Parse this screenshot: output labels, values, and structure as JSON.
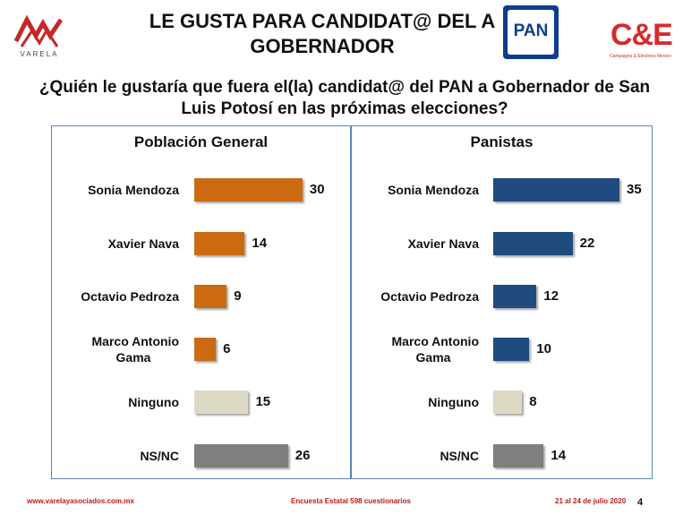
{
  "header": {
    "logo_left_text": "VARELA",
    "title": "LE GUSTA PARA CANDIDAT@ DEL A GOBERNADOR",
    "pan_logo_text": "PAN",
    "ce_logo_text": "C&E",
    "ce_logo_sub": "Campaigns & Elections Mexico"
  },
  "question": "¿Quién le gustaría que fuera el(la) candidat@ del PAN a Gobernador de San Luis Potosí en las próximas elecciones?",
  "colors": {
    "orange": "#cc6a12",
    "blue": "#1f4b7e",
    "beige": "#ddd8c4",
    "gray": "#7f7f7f",
    "panel_border": "#5b85b8",
    "footer_red": "#c21818"
  },
  "chart_data": [
    {
      "type": "bar",
      "title": "Población General",
      "categories": [
        "Sonia Mendoza",
        "Xavier Nava",
        "Octavio Pedroza",
        "Marco Antonio Gama",
        "Ninguno",
        "NS/NC"
      ],
      "values": [
        30,
        14,
        9,
        6,
        15,
        26
      ],
      "bar_colors": [
        "#cc6a12",
        "#cc6a12",
        "#cc6a12",
        "#cc6a12",
        "#ddd8c4",
        "#7f7f7f"
      ],
      "orientation": "horizontal"
    },
    {
      "type": "bar",
      "title": "Panistas",
      "categories": [
        "Sonia Mendoza",
        "Xavier Nava",
        "Octavio Pedroza",
        "Marco Antonio Gama",
        "Ninguno",
        "NS/NC"
      ],
      "values": [
        35,
        22,
        12,
        10,
        8,
        14
      ],
      "bar_colors": [
        "#1f4b7e",
        "#1f4b7e",
        "#1f4b7e",
        "#1f4b7e",
        "#ddd8c4",
        "#7f7f7f"
      ],
      "orientation": "horizontal"
    }
  ],
  "footer": {
    "website": "www.varelayasociados.com.mx",
    "survey": "Encuesta Estatal 598 cuestionarios",
    "dates": "21 al 24 de julio 2020",
    "page": "4"
  }
}
